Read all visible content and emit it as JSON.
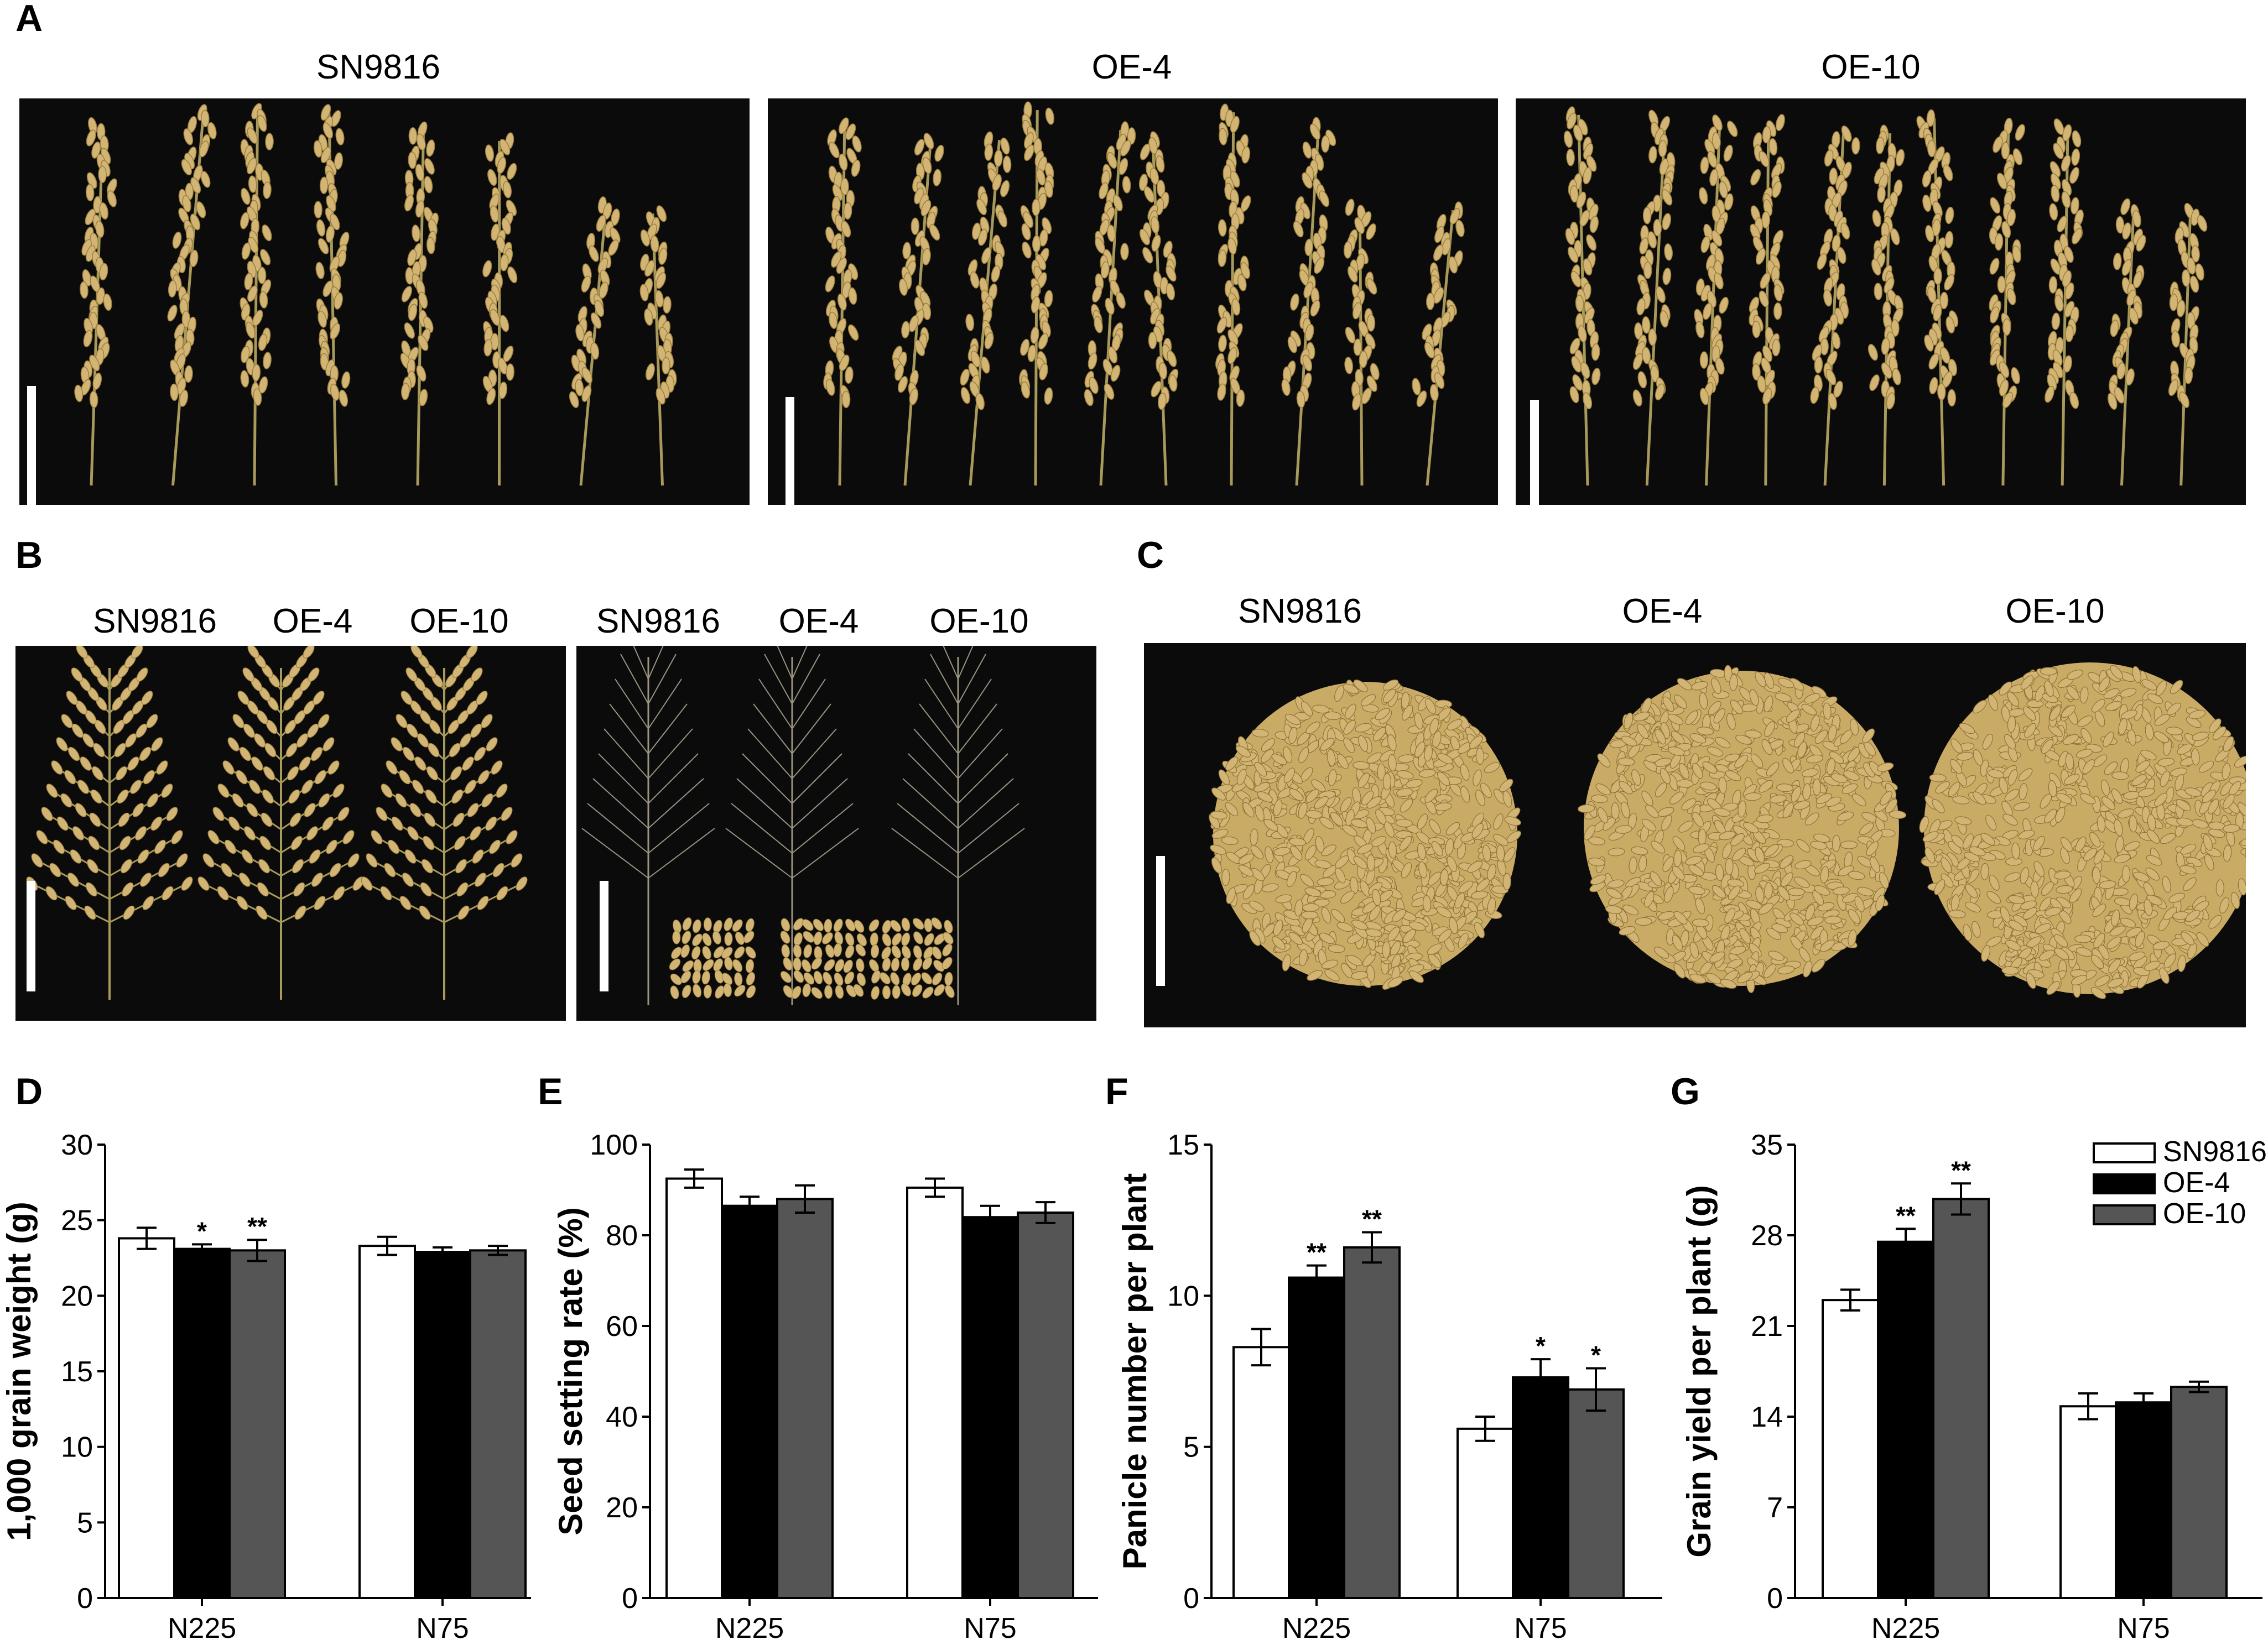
{
  "panels": {
    "A": {
      "letter": "A",
      "labels": [
        "SN9816",
        "OE-4",
        "OE-10"
      ],
      "panicles": [
        8,
        10,
        11
      ]
    },
    "B": {
      "letter": "B",
      "labels_left": [
        "SN9816",
        "OE-4",
        "OE-10"
      ],
      "labels_right": [
        "SN9816",
        "OE-4",
        "OE-10"
      ]
    },
    "C": {
      "letter": "C",
      "labels": [
        "SN9816",
        "OE-4",
        "OE-10"
      ]
    },
    "D": {
      "letter": "D"
    },
    "E": {
      "letter": "E"
    },
    "F": {
      "letter": "F"
    },
    "G": {
      "letter": "G"
    }
  },
  "colors": {
    "photo_bg": "#0b0b0b",
    "grain": "#d2b574",
    "series": [
      "#ffffff",
      "#000000",
      "#555555"
    ]
  },
  "chart_data": [
    {
      "panel": "D",
      "type": "bar",
      "categories": [
        "N225",
        "N75"
      ],
      "ylabel": "1,000 grain weight (g)",
      "ylim": [
        0,
        30
      ],
      "yticks": [
        0,
        5,
        10,
        15,
        20,
        25,
        30
      ],
      "series": [
        {
          "name": "SN9816",
          "values": [
            23.8,
            23.3
          ],
          "errors": [
            0.7,
            0.6
          ],
          "sig": [
            "",
            ""
          ]
        },
        {
          "name": "OE-4",
          "values": [
            23.1,
            22.9
          ],
          "errors": [
            0.3,
            0.3
          ],
          "sig": [
            "*",
            ""
          ]
        },
        {
          "name": "OE-10",
          "values": [
            23.0,
            23.0
          ],
          "errors": [
            0.7,
            0.3
          ],
          "sig": [
            "**",
            ""
          ]
        }
      ]
    },
    {
      "panel": "E",
      "type": "bar",
      "categories": [
        "N225",
        "N75"
      ],
      "ylabel": "Seed setting rate (%)",
      "ylim": [
        0,
        100
      ],
      "yticks": [
        0,
        20,
        40,
        60,
        80,
        100
      ],
      "series": [
        {
          "name": "SN9816",
          "values": [
            92.5,
            90.5
          ],
          "errors": [
            2.0,
            2.0
          ],
          "sig": [
            "",
            ""
          ]
        },
        {
          "name": "OE-4",
          "values": [
            86.5,
            84.0
          ],
          "errors": [
            2.0,
            2.5
          ],
          "sig": [
            "",
            ""
          ]
        },
        {
          "name": "OE-10",
          "values": [
            88.0,
            85.0
          ],
          "errors": [
            3.0,
            2.3
          ],
          "sig": [
            "",
            ""
          ]
        }
      ]
    },
    {
      "panel": "F",
      "type": "bar",
      "categories": [
        "N225",
        "N75"
      ],
      "ylabel": "Panicle number per plant",
      "ylim": [
        0,
        15
      ],
      "yticks": [
        0,
        5,
        10,
        15
      ],
      "series": [
        {
          "name": "SN9816",
          "values": [
            8.3,
            5.6
          ],
          "errors": [
            0.6,
            0.4
          ],
          "sig": [
            "",
            ""
          ]
        },
        {
          "name": "OE-4",
          "values": [
            10.6,
            7.3
          ],
          "errors": [
            0.4,
            0.6
          ],
          "sig": [
            "**",
            "*"
          ]
        },
        {
          "name": "OE-10",
          "values": [
            11.6,
            6.9
          ],
          "errors": [
            0.5,
            0.7
          ],
          "sig": [
            "**",
            "*"
          ]
        }
      ]
    },
    {
      "panel": "G",
      "type": "bar",
      "categories": [
        "N225",
        "N75"
      ],
      "ylabel": "Grain yield per plant (g)",
      "ylim": [
        0,
        35
      ],
      "yticks": [
        0,
        7,
        14,
        21,
        28,
        35
      ],
      "legend": [
        "SN9816",
        "OE-4",
        "OE-10"
      ],
      "legend_position": "top-right",
      "series": [
        {
          "name": "SN9816",
          "values": [
            23.0,
            14.8
          ],
          "errors": [
            0.8,
            1.0
          ],
          "sig": [
            "",
            ""
          ]
        },
        {
          "name": "OE-4",
          "values": [
            27.5,
            15.1
          ],
          "errors": [
            1.0,
            0.7
          ],
          "sig": [
            "**",
            ""
          ]
        },
        {
          "name": "OE-10",
          "values": [
            30.8,
            16.3
          ],
          "errors": [
            1.2,
            0.4
          ],
          "sig": [
            "**",
            ""
          ]
        }
      ]
    }
  ]
}
